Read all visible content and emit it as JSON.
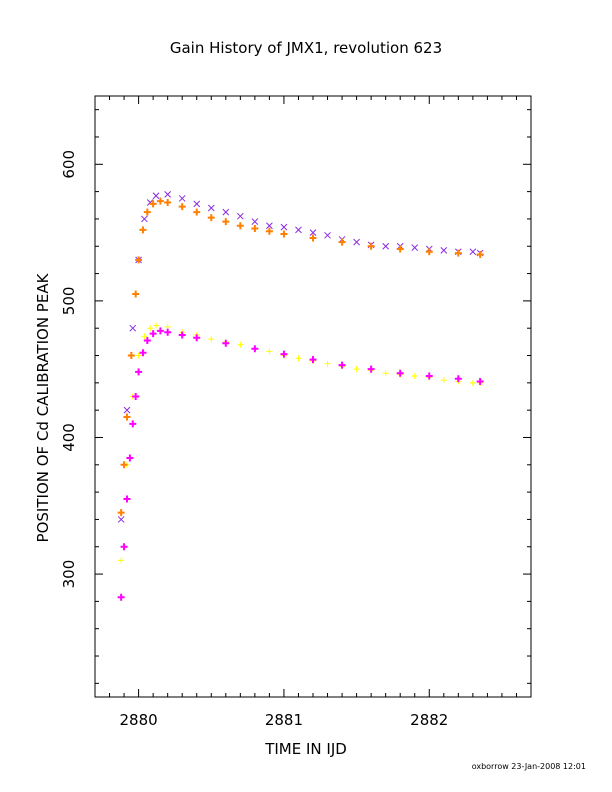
{
  "chart_data": {
    "type": "scatter",
    "title": "Gain History of JMX1, revolution 623",
    "xlabel": "TIME IN IJD",
    "ylabel": "POSITION OF Cd CALIBRATION PEAK",
    "xlim": [
      2879.7,
      2882.7
    ],
    "ylim": [
      210,
      650
    ],
    "xticks": [
      2880,
      2881,
      2882
    ],
    "xtick_labels": [
      "2880",
      "2881",
      "2882"
    ],
    "yticks": [
      300,
      400,
      500,
      600
    ],
    "ytick_labels": [
      "300",
      "400",
      "500",
      "600"
    ],
    "grid": false,
    "series": [
      {
        "marker": "x",
        "color": "#8a2be2",
        "kind": "scatter",
        "x": [
          2879.88,
          2879.92,
          2879.96,
          2880.0,
          2880.04,
          2880.08,
          2880.12,
          2880.2,
          2880.3,
          2880.4,
          2880.5,
          2880.6,
          2880.7,
          2880.8,
          2880.9,
          2881.0,
          2881.1,
          2881.2,
          2881.3,
          2881.4,
          2881.5,
          2881.6,
          2881.7,
          2881.8,
          2881.9,
          2882.0,
          2882.1,
          2882.2,
          2882.3,
          2882.35
        ],
        "y": [
          340,
          420,
          480,
          530,
          560,
          572,
          577,
          578,
          575,
          571,
          568,
          565,
          562,
          558,
          555,
          554,
          552,
          550,
          548,
          545,
          543,
          541,
          540,
          540,
          539,
          538,
          537,
          536,
          536,
          535
        ]
      },
      {
        "marker": "+",
        "color": "#ffff00",
        "kind": "scatter",
        "x": [
          2879.88,
          2879.92,
          2879.96,
          2880.0,
          2880.04,
          2880.08,
          2880.12,
          2880.2,
          2880.3,
          2880.4,
          2880.5,
          2880.6,
          2880.7,
          2880.8,
          2880.9,
          2881.0,
          2881.1,
          2881.2,
          2881.3,
          2881.4,
          2881.5,
          2881.6,
          2881.7,
          2881.8,
          2881.9,
          2882.0,
          2882.1,
          2882.2,
          2882.3,
          2882.35
        ],
        "y": [
          310,
          380,
          430,
          460,
          474,
          480,
          482,
          481,
          477,
          475,
          472,
          470,
          468,
          465,
          463,
          460,
          458,
          456,
          454,
          452,
          450,
          449,
          447,
          446,
          445,
          444,
          442,
          441,
          440,
          440
        ]
      },
      {
        "marker": "+",
        "color": "#ff8000",
        "kind": "model",
        "x": [
          2879.88,
          2879.9,
          2879.92,
          2879.95,
          2879.98,
          2880.0,
          2880.03,
          2880.06,
          2880.1,
          2880.15,
          2880.2,
          2880.3,
          2880.4,
          2880.5,
          2880.6,
          2880.7,
          2880.8,
          2880.9,
          2881.0,
          2881.2,
          2881.4,
          2881.6,
          2881.8,
          2882.0,
          2882.2,
          2882.35
        ],
        "y": [
          345,
          380,
          415,
          460,
          505,
          530,
          552,
          565,
          571,
          573,
          572,
          569,
          565,
          561,
          558,
          555,
          553,
          551,
          549,
          546,
          543,
          540,
          538,
          536,
          535,
          534
        ]
      },
      {
        "marker": "+",
        "color": "#ff00ff",
        "kind": "model",
        "x": [
          2879.88,
          2879.9,
          2879.92,
          2879.94,
          2879.96,
          2879.98,
          2880.0,
          2880.03,
          2880.06,
          2880.1,
          2880.15,
          2880.2,
          2880.3,
          2880.4,
          2880.6,
          2880.8,
          2881.0,
          2881.2,
          2881.4,
          2881.6,
          2881.8,
          2882.0,
          2882.2,
          2882.35
        ],
        "y": [
          283,
          320,
          355,
          385,
          410,
          430,
          448,
          462,
          471,
          476,
          478,
          477,
          475,
          473,
          469,
          465,
          461,
          457,
          453,
          450,
          447,
          445,
          443,
          441
        ]
      }
    ]
  },
  "footer": {
    "stamp": "oxborrow 23-Jan-2008 12:01"
  }
}
